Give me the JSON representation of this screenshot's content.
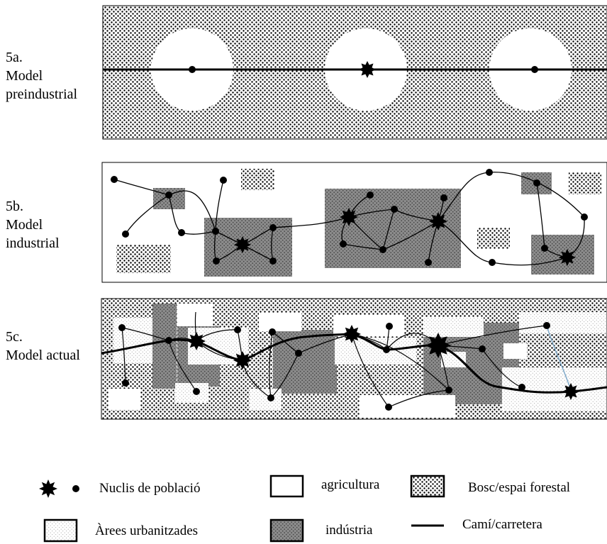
{
  "panels": {
    "a": {
      "label": "5a.\nModel\npreindustrial"
    },
    "b": {
      "label": "5b.\nModel\nindustrial"
    },
    "c": {
      "label": "5c.\nModel actual"
    }
  },
  "legend": {
    "population_nuclei": "Nuclis de població",
    "agriculture": "agricultura",
    "forest": "Bosc/espai forestal",
    "urbanized_areas": "Àrees urbanitzades",
    "industry": "indústria",
    "road": "Camí/carretera"
  },
  "colors": {
    "background": "#ffffff",
    "forest_dots": "#000000",
    "industry_fill": "#8c8c8c",
    "road": "#000000",
    "dashed_link": "#7fa9c9"
  }
}
